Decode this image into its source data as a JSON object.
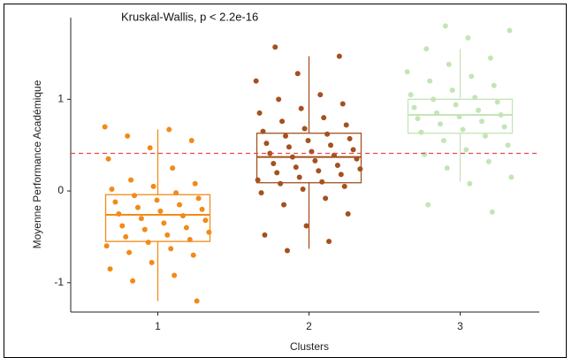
{
  "chart_data": {
    "type": "box",
    "annotation": "Kruskal-Wallis, p < 2.2e-16",
    "xlabel": "Clusters",
    "ylabel": "Moyenne Performance Académique",
    "categories": [
      "1",
      "2",
      "3"
    ],
    "ylim": [
      -1.32,
      1.89
    ],
    "yticks": [
      -1,
      0,
      1
    ],
    "hline": 0.41,
    "hline_color": "#e8474f",
    "boxes": [
      {
        "color": "#f28a17",
        "min": -1.2,
        "q1": -0.55,
        "median": -0.26,
        "q3": -0.04,
        "max": 0.67,
        "points": [
          0.7,
          0.67,
          0.6,
          0.55,
          0.47,
          0.35,
          0.25,
          0.12,
          0.08,
          0.05,
          0.02,
          -0.02,
          -0.05,
          -0.08,
          -0.1,
          -0.12,
          -0.15,
          -0.18,
          -0.2,
          -0.22,
          -0.25,
          -0.27,
          -0.3,
          -0.32,
          -0.35,
          -0.38,
          -0.4,
          -0.42,
          -0.45,
          -0.48,
          -0.5,
          -0.53,
          -0.56,
          -0.6,
          -0.63,
          -0.67,
          -0.7,
          -0.78,
          -0.85,
          -0.92,
          -0.98,
          -1.2
        ]
      },
      {
        "color": "#a5511e",
        "min": -0.63,
        "q1": 0.09,
        "median": 0.37,
        "q3": 0.63,
        "max": 1.47,
        "points": [
          1.57,
          1.47,
          1.28,
          1.2,
          1.05,
          1.0,
          0.95,
          0.9,
          0.85,
          0.8,
          0.76,
          0.72,
          0.68,
          0.65,
          0.62,
          0.6,
          0.57,
          0.55,
          0.52,
          0.5,
          0.48,
          0.45,
          0.43,
          0.41,
          0.39,
          0.37,
          0.35,
          0.33,
          0.3,
          0.28,
          0.26,
          0.24,
          0.22,
          0.2,
          0.18,
          0.15,
          0.12,
          0.1,
          0.08,
          0.05,
          0.02,
          -0.02,
          -0.08,
          -0.15,
          -0.25,
          -0.38,
          -0.48,
          -0.55,
          -0.65
        ]
      },
      {
        "color": "#c3e5b5",
        "min": 0.1,
        "q1": 0.63,
        "median": 0.83,
        "q3": 1.0,
        "max": 1.55,
        "points": [
          1.8,
          1.75,
          1.67,
          1.55,
          1.45,
          1.38,
          1.3,
          1.25,
          1.2,
          1.15,
          1.1,
          1.05,
          1.02,
          1.0,
          0.97,
          0.94,
          0.91,
          0.88,
          0.85,
          0.83,
          0.81,
          0.79,
          0.76,
          0.73,
          0.7,
          0.67,
          0.64,
          0.6,
          0.55,
          0.5,
          0.45,
          0.4,
          0.32,
          0.25,
          0.15,
          0.08,
          -0.15,
          -0.23
        ]
      }
    ]
  }
}
